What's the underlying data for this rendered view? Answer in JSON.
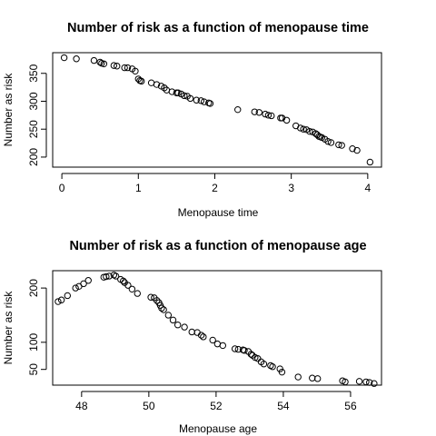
{
  "chart_data": [
    {
      "type": "scatter",
      "title": "Number of risk as a function of menopause time",
      "xlabel": "Menopause time",
      "ylabel": "Number as risk",
      "xlim": [
        -0.12,
        4.18
      ],
      "ylim": [
        182,
        387
      ],
      "xticks": [
        0,
        1,
        2,
        3,
        4
      ],
      "yticks": [
        200,
        250,
        300,
        350
      ],
      "grid": false,
      "x": [
        0.03,
        0.19,
        0.42,
        0.5,
        0.52,
        0.55,
        0.68,
        0.72,
        0.82,
        0.86,
        0.92,
        0.96,
        1.0,
        1.02,
        1.04,
        1.17,
        1.24,
        1.3,
        1.34,
        1.37,
        1.44,
        1.5,
        1.52,
        1.56,
        1.6,
        1.64,
        1.68,
        1.76,
        1.82,
        1.86,
        1.92,
        1.94,
        2.3,
        2.52,
        2.58,
        2.66,
        2.7,
        2.74,
        2.86,
        2.88,
        2.94,
        3.06,
        3.12,
        3.16,
        3.2,
        3.24,
        3.28,
        3.32,
        3.34,
        3.36,
        3.38,
        3.4,
        3.44,
        3.48,
        3.52,
        3.62,
        3.66,
        3.8,
        3.86,
        4.03
      ],
      "y": [
        378,
        376,
        373,
        370,
        368,
        367,
        364,
        363,
        360,
        360,
        358,
        354,
        340,
        337,
        336,
        333,
        330,
        327,
        324,
        320,
        317,
        315,
        315,
        313,
        310,
        309,
        305,
        302,
        301,
        299,
        297,
        296,
        285,
        281,
        280,
        277,
        275,
        274,
        270,
        270,
        266,
        256,
        252,
        250,
        249,
        246,
        245,
        242,
        240,
        237,
        236,
        235,
        232,
        228,
        226,
        222,
        221,
        215,
        212,
        191
      ]
    },
    {
      "type": "scatter",
      "title": "Number of risk as a function of menopause age",
      "xlabel": "Menopause age",
      "ylabel": "Number as risk",
      "xlim": [
        47.14,
        56.92
      ],
      "ylim": [
        21,
        232
      ],
      "xticks": [
        48,
        50,
        52,
        54,
        56
      ],
      "yticks": [
        50,
        100,
        200
      ],
      "grid": false,
      "x": [
        47.3,
        47.4,
        47.58,
        47.82,
        47.92,
        48.06,
        48.2,
        48.66,
        48.73,
        48.82,
        48.96,
        49.02,
        49.16,
        49.24,
        49.28,
        49.38,
        49.5,
        49.66,
        50.06,
        50.16,
        50.24,
        50.3,
        50.34,
        50.38,
        50.44,
        50.58,
        50.72,
        50.86,
        51.06,
        51.28,
        51.44,
        51.56,
        51.62,
        51.9,
        52.04,
        52.2,
        52.56,
        52.66,
        52.8,
        52.84,
        52.96,
        53.04,
        53.08,
        53.16,
        53.24,
        53.34,
        53.42,
        53.62,
        53.68,
        53.9,
        53.96,
        54.44,
        54.86,
        55.02,
        55.76,
        55.84,
        56.26,
        56.46,
        56.56,
        56.7
      ],
      "y": [
        175,
        178,
        186,
        200,
        203,
        208,
        214,
        220,
        221,
        222,
        224,
        222,
        216,
        213,
        210,
        205,
        198,
        190,
        183,
        182,
        177,
        173,
        168,
        163,
        160,
        150,
        141,
        132,
        128,
        119,
        118,
        113,
        110,
        104,
        97,
        94,
        88,
        87,
        86,
        85,
        83,
        78,
        76,
        72,
        70,
        64,
        60,
        57,
        55,
        51,
        45,
        36,
        34,
        33,
        29,
        27,
        28,
        27,
        26,
        24
      ]
    }
  ]
}
